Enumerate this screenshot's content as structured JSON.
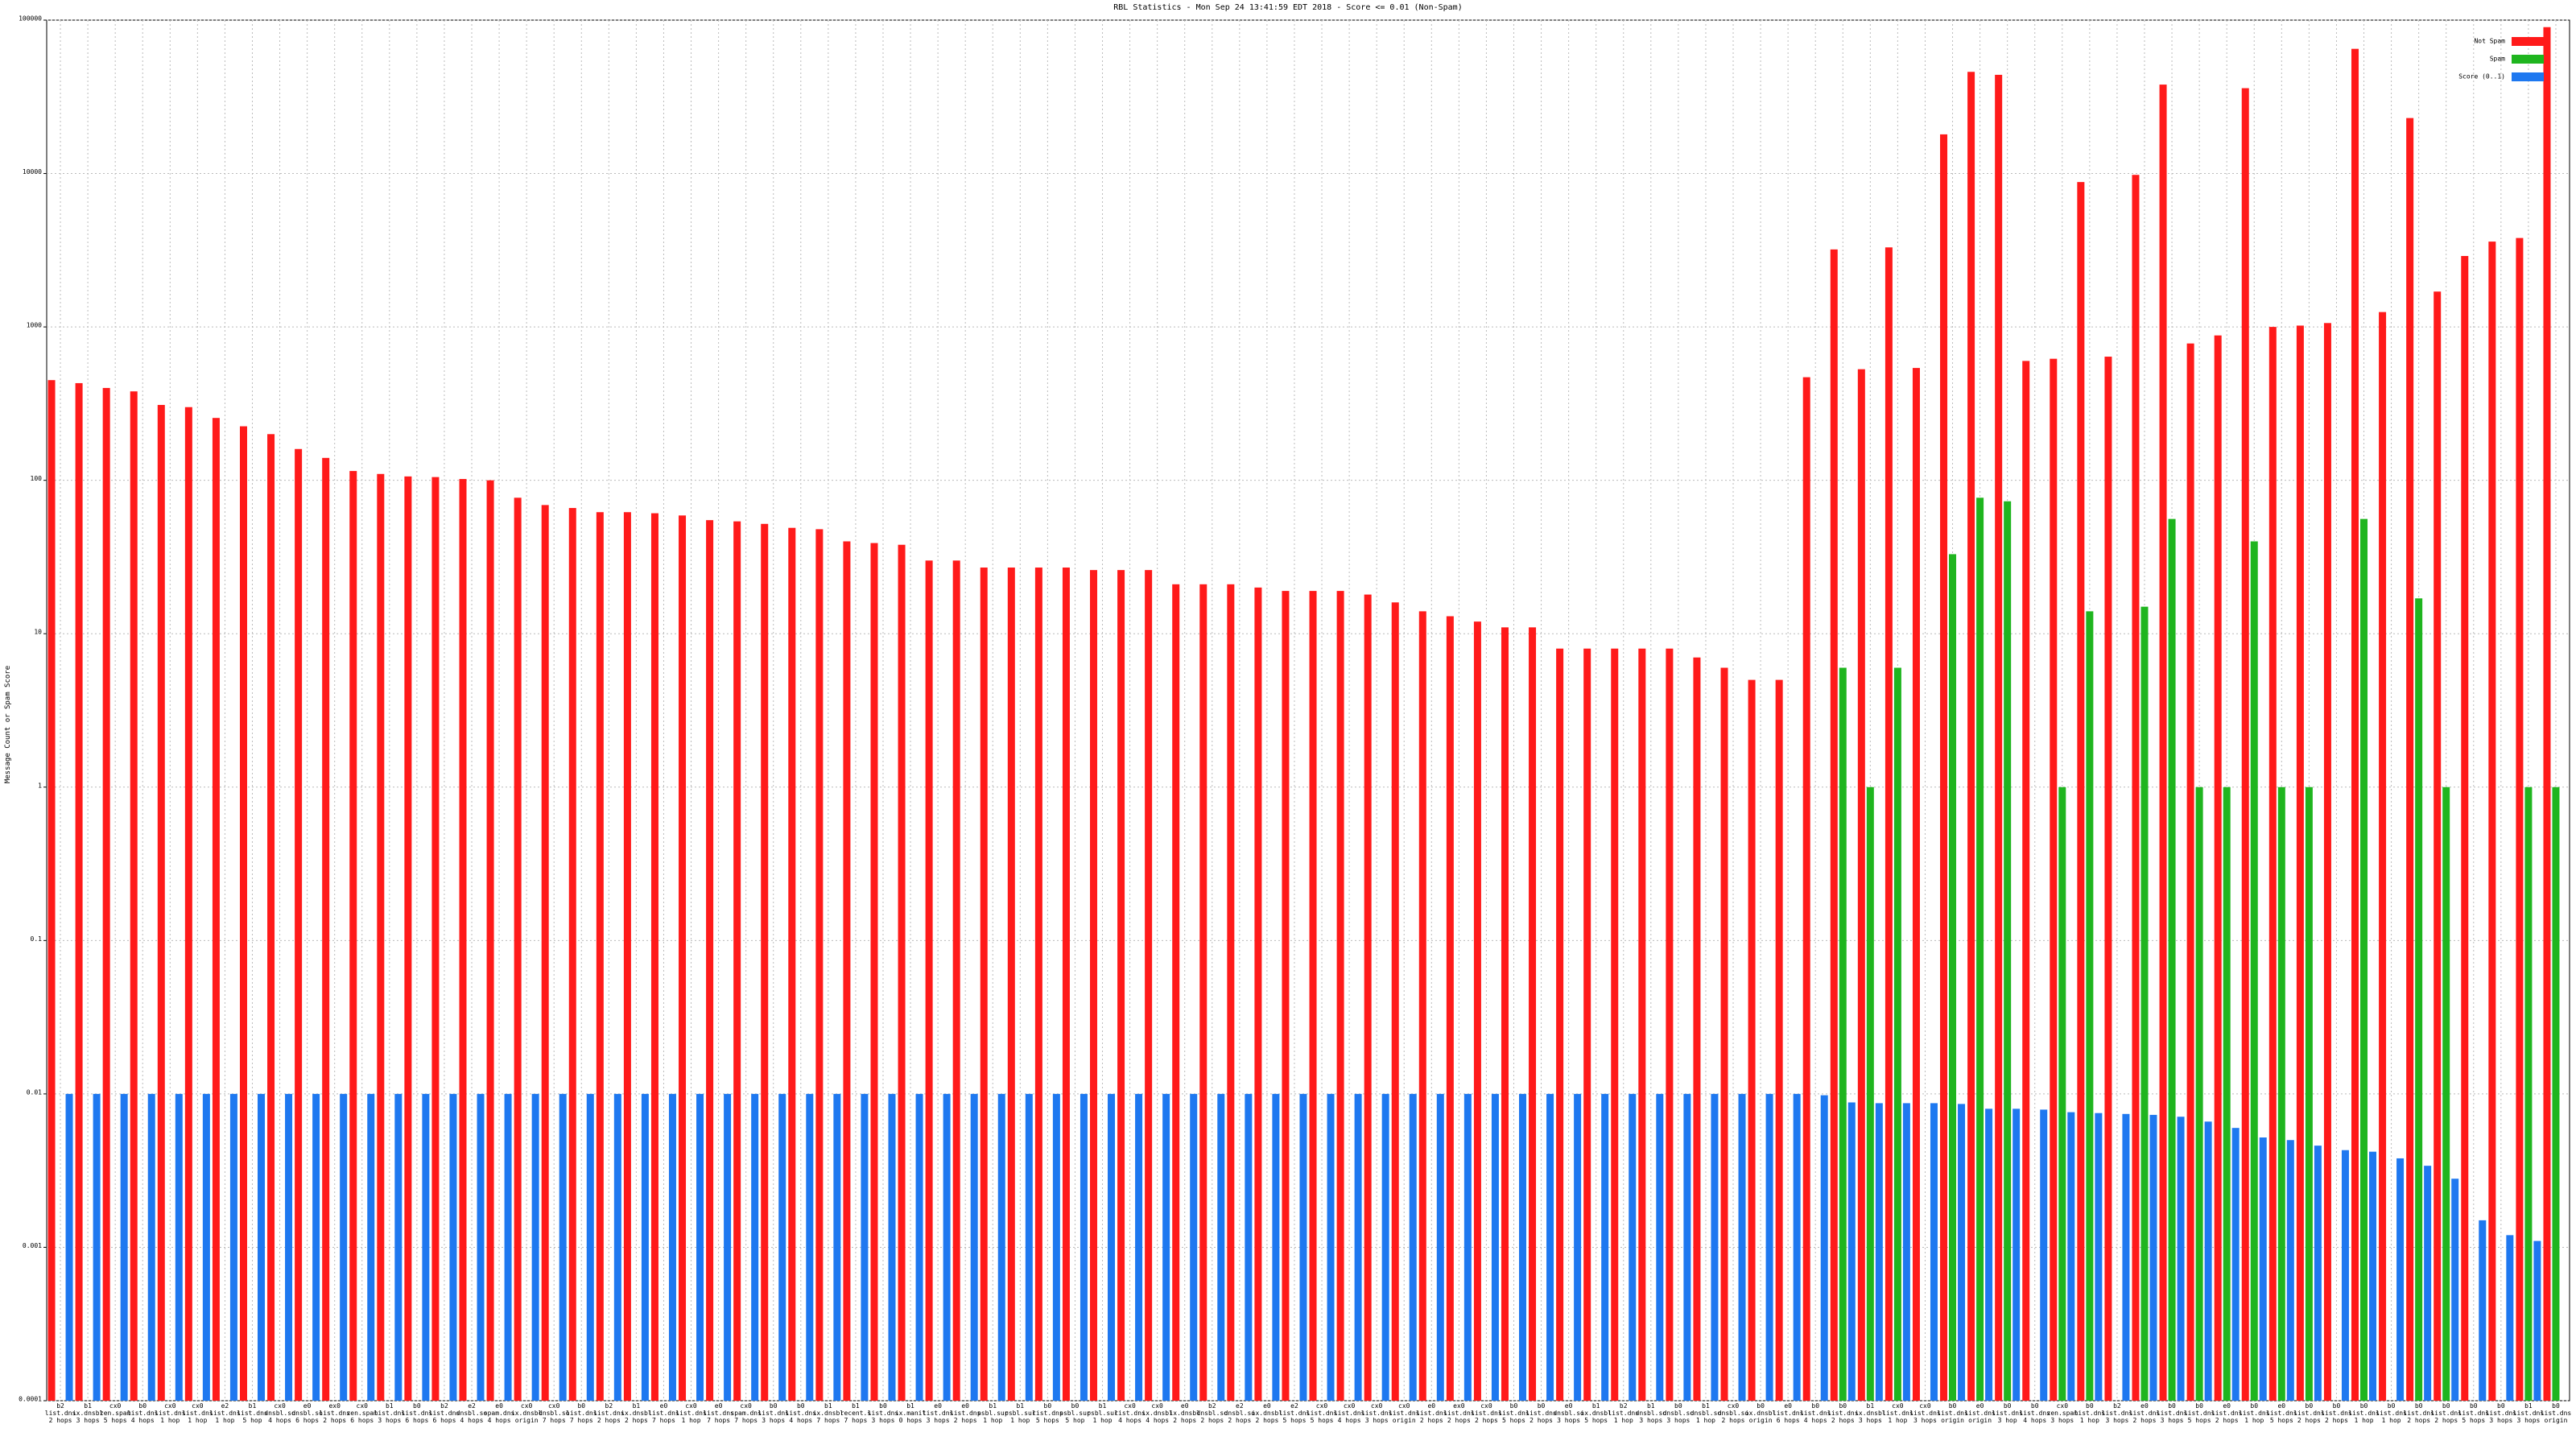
{
  "chart_data": {
    "type": "bar",
    "log": true,
    "grid": true,
    "legend": "top-right",
    "title": "RBL Statistics - Mon Sep 24 13:41:59 EDT 2018 - Score <= 0.01 (Non-Spam)",
    "y_label": "Message Count or Spam Score",
    "ylim": [
      0.0001,
      100000
    ],
    "yticks": [
      0.0001,
      0.001,
      0.01,
      0.1,
      1,
      10,
      100,
      1000,
      10000,
      100000
    ],
    "categories": [
      "b2 list.dnsbl.org 2 hops",
      "b1 ix.dnsbl.org 3 hops",
      "cx0 zen.spamhaus.org 5 hops",
      "b0 list.dnsbl.org 4 hops",
      "cx0 list.dnsbl.org 1 hop",
      "cx0 list.dnsbl.org 1 hop",
      "e2 list.dnsbl.org 1 hop",
      "b1 list.dnsbl.org 5 hop",
      "cx0 dnsbl.sorbs.net 4 hops",
      "e0 dnsbl.sorbs.net 6 hops",
      "ex0 list.dnsbl.org 2 hops",
      "cx0 zen.spamhaus.org 6 hops",
      "b1 list.dnsbl.org 3 hops",
      "b0 list.dnsbl.org 6 hops",
      "b2 list.dnsbl.org 6 hops",
      "e2 dnsbl.sorbs.net 4 hops",
      "e0 spam.dnsbl.sorbs.net 4 hops",
      "cx0 ix.dnsbl.org origin",
      "cx0 dnsbl.sorbs.net 7 hops",
      "b0 list.dnsbl.org 7 hops",
      "b2 list.dnsbl.org 2 hops",
      "b1 ix.dnsbl.org 2 hops",
      "e0 list.dnsbl.org 7 hops",
      "cx0 list.dnsbl.org 1 hop",
      "e0 list.dnsbl.org 7 hops",
      "cx0 spam.dnsbl.sorbs.net 7 hops",
      "b0 list.dnsbl.org 3 hops",
      "b0 list.dnsbl.org 4 hops",
      "b1 ix.dnsbl.org 7 hops",
      "b1 recent.spam.dnsbl.sorbs.net 7 hops",
      "b0 list.dnsbl.org 3 hops",
      "b1 ix.manitu.org 0 hops",
      "e0 list.dnsbl.org 3 hops",
      "e0 list.dnsbl.org 2 hops",
      "b1 psbl.surriel.com 1 hop",
      "b1 psbl.surriel.com 1 hop",
      "b0 list.dnsbl.org 5 hops",
      "b0 psbl.surriel.com 5 hop",
      "b1 psbl.surriel.com 1 hop",
      "cx0 list.dnsbl.org 4 hops",
      "cx0 ix.dnsbl.org 4 hops",
      "e0 ix.dnsbl.org 2 hops",
      "b2 dnsbl.sorbs.net 2 hops",
      "e2 dnsbl.sorbs.net 2 hops",
      "e0 ix.dnsbl.org 2 hops",
      "e2 list.dnsbl.org 5 hops",
      "cx0 list.dnsbl.org 5 hops",
      "cx0 list.dnsbl.org 4 hops",
      "cx0 list.dnsbl.org 3 hops",
      "cx0 list.dnsbl.org origin",
      "e0 list.dnsbl.org 2 hops",
      "ex0 list.dnsbl.org 2 hops",
      "cx0 list.dnsbl.org 2 hops",
      "b0 list.dnsbl.org 5 hops",
      "b0 list.dnsbl.org 2 hops",
      "e0 dnsbl.sorbs.net 3 hops",
      "b1 ix.dnsbl.org 5 hops",
      "b2 list.dnsbl.org 1 hop",
      "b1 dnsbl.sorbs.net 3 hops",
      "b0 dnsbl.sorbs.net 3 hops",
      "b1 dnsbl.sorbs.net 1 hop",
      "cx0 dnsbl.sorbs.net 2 hops",
      "b0 ix.dnsbl.org origin",
      "e0 list.dnsbl.org 6 hops",
      "b0 list.dnsbl.org 4 hops",
      "b0 list.dnsbl.org 2 hops",
      "b1 ix.dnsbl.org 3 hops",
      "cx0 list.dnsbl.org 1 hop",
      "cx0 list.dnsbl.org 3 hops",
      "b0 list.dnsbl.org origin",
      "e0 list.dnsbl.org origin",
      "b0 list.dnsbl.org 3 hop",
      "b0 list.dnsbl.org 4 hops",
      "cx0 zen.spamhaus.org 3 hops",
      "b0 list.dnsbl.org 1 hop",
      "b2 list.dnsbl.org 3 hops",
      "e0 list.dnsbl.org 2 hops",
      "b0 list.dnsbl.org 3 hops",
      "b0 list.dnsbl.org 5 hops",
      "e0 list.dnsbl.org 2 hops",
      "b0 list.dnsbl.org 1 hop",
      "e0 list.dnsbl.org 5 hops",
      "b0 list.dnsbl.org 2 hops",
      "b0 list.dnsbl.org 2 hops",
      "b0 list.dnsbl.org 1 hop",
      "b0 list.dnsbl.org 1 hop",
      "b0 list.dnsbl.org 2 hops",
      "b0 list.dnsbl.org 2 hops",
      "b0 list.dnsbl.org 5 hops",
      "b0 list.dnsbl.org 3 hops",
      "b1 list.dnsbl.org 3 hops",
      "b0 list.dnsbl.org origin"
    ],
    "series": [
      {
        "name": "Not Spam",
        "color": "#ff1a1a",
        "values": [
          450,
          430,
          400,
          380,
          310,
          300,
          255,
          225,
          200,
          160,
          140,
          115,
          110,
          106,
          105,
          102,
          100,
          77,
          69,
          66,
          62,
          62,
          61,
          59,
          55,
          54,
          52,
          49,
          48,
          40,
          39,
          38,
          30,
          30,
          27,
          27,
          27,
          27,
          26,
          26,
          26,
          21,
          21,
          21,
          20,
          19,
          19,
          19,
          18,
          16,
          14,
          13,
          12,
          11,
          11,
          8,
          8,
          8,
          8,
          8,
          7,
          6,
          5,
          5,
          470,
          3200,
          530,
          3300,
          540,
          18000,
          46000,
          44000,
          600,
          620,
          8800,
          640,
          9800,
          38000,
          780,
          880,
          36000,
          1000,
          1020,
          1060,
          65000,
          1250,
          23000,
          1700,
          2900,
          3600,
          3800,
          90000
        ]
      },
      {
        "name": "Spam",
        "color": "#1fb51f",
        "values": [
          null,
          null,
          null,
          null,
          null,
          null,
          null,
          null,
          null,
          null,
          null,
          null,
          null,
          null,
          null,
          null,
          null,
          null,
          null,
          null,
          null,
          null,
          null,
          null,
          null,
          null,
          null,
          null,
          null,
          null,
          null,
          null,
          null,
          null,
          null,
          null,
          null,
          null,
          null,
          null,
          null,
          null,
          null,
          null,
          null,
          null,
          null,
          null,
          null,
          null,
          null,
          null,
          null,
          null,
          null,
          null,
          null,
          null,
          null,
          null,
          null,
          null,
          null,
          null,
          null,
          6,
          1,
          6,
          null,
          33,
          77,
          73,
          null,
          1,
          14,
          null,
          15,
          56,
          1,
          1,
          40,
          1,
          1,
          null,
          56,
          null,
          17,
          1,
          null,
          null,
          1,
          1
        ]
      },
      {
        "name": "Score (0..1)",
        "color": "#1e78f0",
        "values": [
          0.01,
          0.01,
          0.01,
          0.01,
          0.01,
          0.01,
          0.01,
          0.01,
          0.01,
          0.01,
          0.01,
          0.01,
          0.01,
          0.01,
          0.01,
          0.01,
          0.01,
          0.01,
          0.01,
          0.01,
          0.01,
          0.01,
          0.01,
          0.01,
          0.01,
          0.01,
          0.01,
          0.01,
          0.01,
          0.01,
          0.01,
          0.01,
          0.01,
          0.01,
          0.01,
          0.01,
          0.01,
          0.01,
          0.01,
          0.01,
          0.01,
          0.01,
          0.01,
          0.01,
          0.01,
          0.01,
          0.01,
          0.01,
          0.01,
          0.01,
          0.01,
          0.01,
          0.01,
          0.01,
          0.01,
          0.01,
          0.01,
          0.01,
          0.01,
          0.01,
          0.01,
          0.01,
          0.01,
          0.01,
          0.0098,
          0.0088,
          0.0087,
          0.0087,
          0.0087,
          0.0086,
          0.008,
          0.008,
          0.0079,
          0.0076,
          0.0075,
          0.0074,
          0.0073,
          0.0071,
          0.0066,
          0.006,
          0.0052,
          0.005,
          0.0046,
          0.0043,
          0.0042,
          0.0038,
          0.0034,
          0.0028,
          0.0015,
          0.0012,
          0.0011,
          null
        ]
      }
    ]
  }
}
